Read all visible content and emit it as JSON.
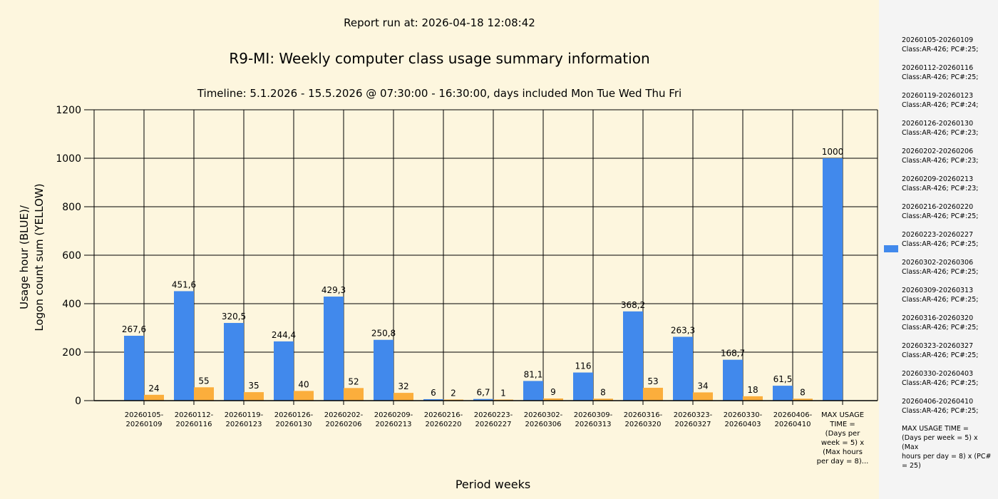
{
  "header": {
    "run": "Report run at: 2026-04-18 12:08:42",
    "title": "R9-MI: Weekly computer class usage summary information",
    "timeline": "Timeline:  5.1.2026  - 15.5.2026  @  07:30:00 -  16:30:00, days included Mon Tue Wed Thu Fri"
  },
  "colors": {
    "usage": "#4189ec",
    "logon": "#fbae3c",
    "background": "#fdf6de",
    "legend_bg": "#f4f4f4"
  },
  "chart_data": {
    "type": "bar",
    "title": "R9-MI: Weekly computer class usage summary information",
    "xlabel": "Period weeks",
    "ylabel_line1": "Usage hour (BLUE)/",
    "ylabel_line2": "Logon count sum (YELLOW)",
    "ylim": [
      0,
      1200
    ],
    "yticks": [
      "0",
      "200",
      "400",
      "600",
      "800",
      "1000",
      "1200"
    ],
    "ytick_values": [
      0,
      200,
      400,
      600,
      800,
      1000,
      1200
    ],
    "grid": true,
    "categories": [
      [
        "20260105-",
        "20260109"
      ],
      [
        "20260112-",
        "20260116"
      ],
      [
        "20260119-",
        "20260123"
      ],
      [
        "20260126-",
        "20260130"
      ],
      [
        "20260202-",
        "20260206"
      ],
      [
        "20260209-",
        "20260213"
      ],
      [
        "20260216-",
        "20260220"
      ],
      [
        "20260223-",
        "20260227"
      ],
      [
        "20260302-",
        "20260306"
      ],
      [
        "20260309-",
        "20260313"
      ],
      [
        "20260316-",
        "20260320"
      ],
      [
        "20260323-",
        "20260327"
      ],
      [
        "20260330-",
        "20260403"
      ],
      [
        "20260406-",
        "20260410"
      ],
      [
        "MAX USAGE",
        "TIME =",
        "(Days per",
        "week = 5) x",
        "(Max hours",
        "per day = 8)..."
      ]
    ],
    "series": [
      {
        "name": "Usage hour",
        "values": [
          267.6,
          451.6,
          320.5,
          244.4,
          429.3,
          250.8,
          6,
          6.7,
          81.1,
          116,
          368.2,
          263.3,
          168.7,
          61.5,
          1000
        ],
        "labels": [
          "267,6",
          "451,6",
          "320,5",
          "244,4",
          "429,3",
          "250,8",
          "6",
          "6,7",
          "81,1",
          "116",
          "368,2",
          "263,3",
          "168,7",
          "61,5",
          "1000"
        ]
      },
      {
        "name": "Logon count sum",
        "values": [
          24,
          55,
          35,
          40,
          52,
          32,
          2,
          1,
          9,
          8,
          53,
          34,
          18,
          8,
          null
        ],
        "labels": [
          "24",
          "55",
          "35",
          "40",
          "52",
          "32",
          "2",
          "1",
          "9",
          "8",
          "53",
          "34",
          "18",
          "8",
          ""
        ]
      }
    ],
    "legend_position": "right",
    "legend": [
      "20260105-20260109",
      "Class:AR-426; PC#:25;",
      "20260112-20260116",
      "Class:AR-426; PC#:25;",
      "20260119-20260123",
      "Class:AR-426; PC#:24;",
      "20260126-20260130",
      "Class:AR-426; PC#:23;",
      "20260202-20260206",
      "Class:AR-426; PC#:23;",
      "20260209-20260213",
      "Class:AR-426; PC#:23;",
      "20260216-20260220",
      "Class:AR-426; PC#:25;",
      "20260223-20260227",
      "Class:AR-426; PC#:25;",
      "20260302-20260306",
      "Class:AR-426; PC#:25;",
      "20260309-20260313",
      "Class:AR-426; PC#:25;",
      "20260316-20260320",
      "Class:AR-426; PC#:25;",
      "20260323-20260327",
      "Class:AR-426; PC#:25;",
      "20260330-20260403",
      "Class:AR-426; PC#:25;",
      "20260406-20260410",
      "Class:AR-426; PC#:25;",
      "MAX USAGE TIME =",
      "(Days per week = 5) x (Max",
      "hours per day = 8) x (PC#",
      "= 25)"
    ]
  }
}
